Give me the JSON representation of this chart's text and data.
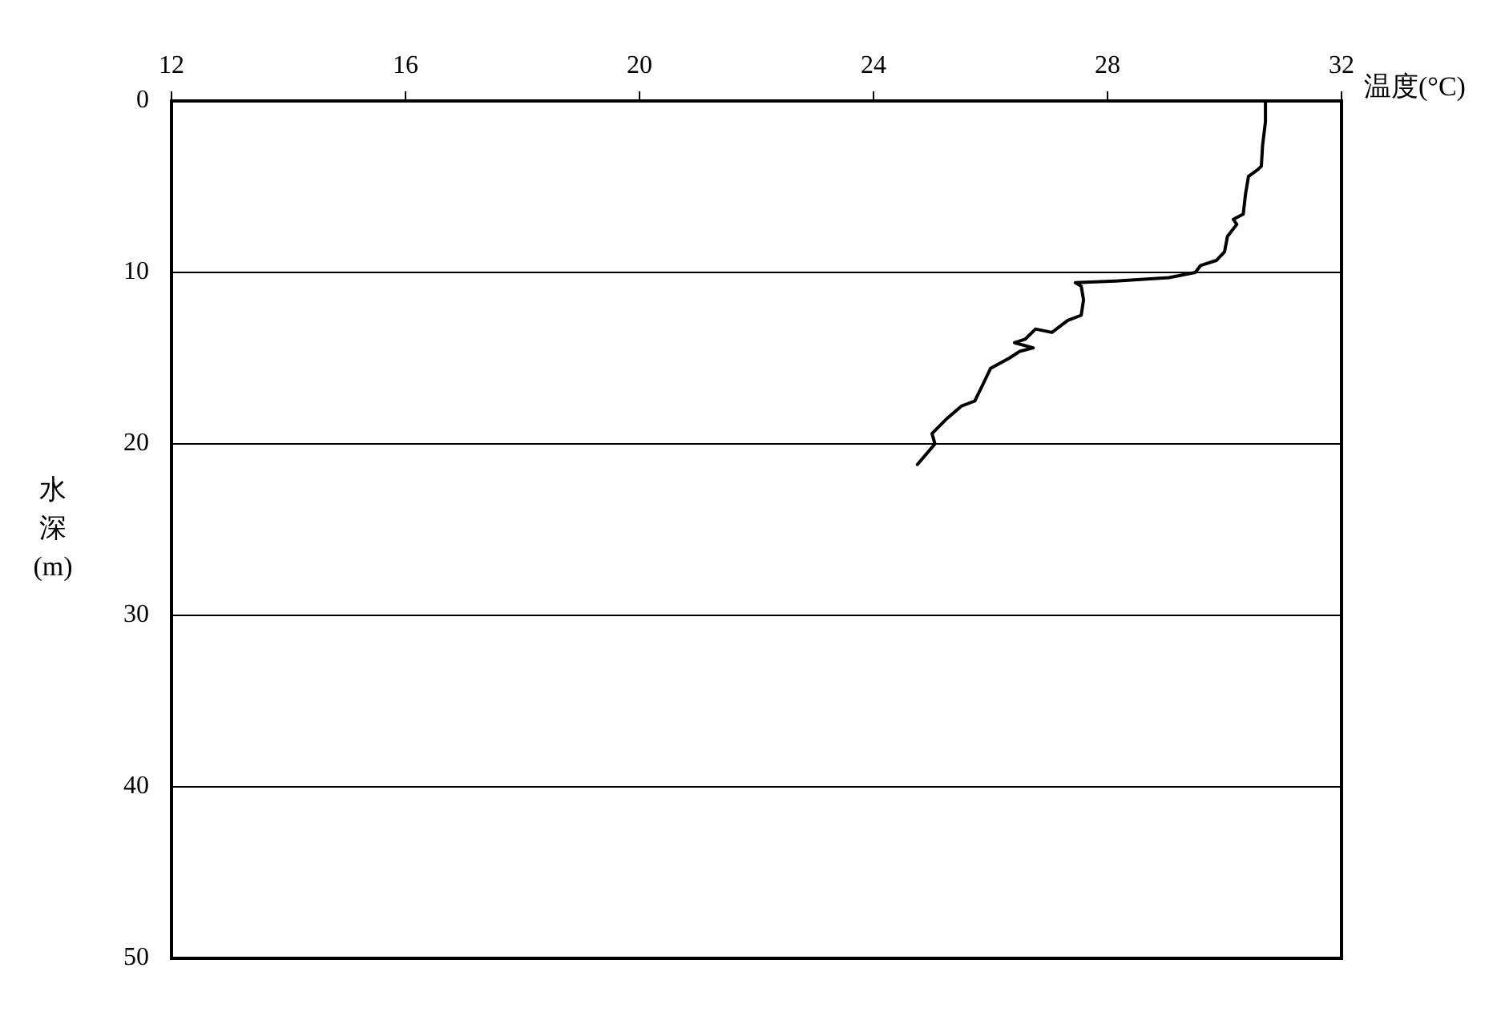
{
  "chart_data": {
    "type": "line",
    "xlabel": "温度(°C)",
    "ylabel": "水深(m)",
    "xlim": [
      12,
      32
    ],
    "xticks": [
      12,
      16,
      20,
      24,
      28,
      32
    ],
    "ylim": [
      50,
      0
    ],
    "yticks": [
      0,
      10,
      20,
      30,
      40,
      50
    ],
    "grid": "y",
    "marker": "none",
    "line_style": "solid",
    "series": [
      {
        "color": "#000000",
        "x": [
          30.7,
          30.7,
          30.65,
          30.63,
          30.57,
          30.41,
          30.36,
          30.32,
          30.15,
          30.21,
          30.05,
          30.0,
          29.86,
          29.59,
          29.5,
          29.05,
          28.14,
          27.45,
          27.55,
          27.59,
          27.55,
          27.32,
          27.05,
          26.77,
          26.59,
          26.41,
          26.73,
          26.5,
          26.32,
          26.0,
          25.86,
          25.73,
          25.5,
          25.23,
          25.0,
          25.05,
          24.9,
          24.75
        ],
        "values": [
          0,
          1.2,
          2.6,
          3.8,
          4.0,
          4.4,
          5.4,
          6.6,
          6.9,
          7.2,
          7.9,
          8.8,
          9.3,
          9.6,
          10.0,
          10.3,
          10.5,
          10.6,
          10.8,
          11.6,
          12.5,
          12.8,
          13.5,
          13.3,
          13.9,
          14.1,
          14.4,
          14.6,
          15.0,
          15.6,
          16.6,
          17.5,
          17.8,
          18.6,
          19.4,
          20.0,
          20.6,
          21.2
        ]
      }
    ]
  }
}
